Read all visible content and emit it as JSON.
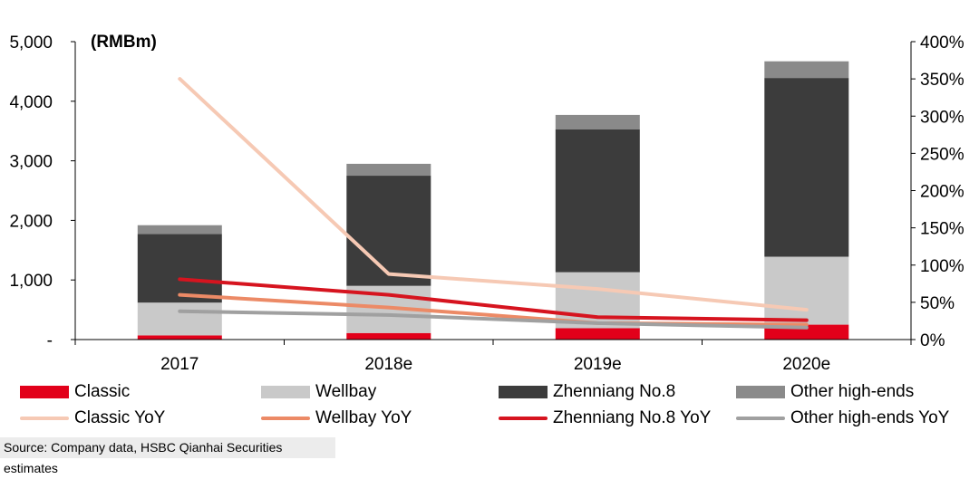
{
  "chart_data": {
    "type": "bar",
    "stacked": true,
    "unit_label": "(RMBm)",
    "categories": [
      "2017",
      "2018e",
      "2019e",
      "2020e"
    ],
    "series": [
      {
        "name": "Classic",
        "color": "#e2001a",
        "values": [
          70,
          110,
          190,
          250
        ]
      },
      {
        "name": "Wellbay",
        "color": "#c9c9c9",
        "values": [
          550,
          790,
          940,
          1140
        ]
      },
      {
        "name": "Zhenniang No.8",
        "color": "#3c3c3c",
        "values": [
          1150,
          1850,
          2400,
          3000
        ]
      },
      {
        "name": "Other high-ends",
        "color": "#8a8a8a",
        "values": [
          150,
          200,
          240,
          280
        ]
      }
    ],
    "line_series": [
      {
        "name": "Classic YoY",
        "color": "#f6c9b4",
        "values": [
          350,
          88,
          68,
          40
        ]
      },
      {
        "name": "Wellbay YoY",
        "color": "#ec8a66",
        "values": [
          60,
          43,
          22,
          20
        ]
      },
      {
        "name": "Zhenniang No.8 YoY",
        "color": "#d6141f",
        "values": [
          81,
          60,
          30,
          26
        ]
      },
      {
        "name": "Other high-ends YoY",
        "color": "#a0a0a0",
        "values": [
          38,
          33,
          22,
          16
        ]
      }
    ],
    "y_left": {
      "min": 0,
      "max": 5000,
      "ticks": [
        0,
        1000,
        2000,
        3000,
        4000,
        5000
      ],
      "tick_labels": [
        "-",
        "1,000",
        "2,000",
        "3,000",
        "4,000",
        "5,000"
      ]
    },
    "y_right": {
      "min": 0,
      "max": 400,
      "ticks": [
        0,
        50,
        100,
        150,
        200,
        250,
        300,
        350,
        400
      ],
      "tick_labels": [
        "0%",
        "50%",
        "100%",
        "150%",
        "200%",
        "250%",
        "300%",
        "350%",
        "400%"
      ]
    },
    "legend_position": "bottom"
  },
  "legend": {
    "bars": [
      "Classic",
      "Wellbay",
      "Zhenniang No.8",
      "Other high-ends"
    ],
    "lines": [
      "Classic YoY",
      "Wellbay YoY",
      "Zhenniang No.8 YoY",
      "Other high-ends YoY"
    ]
  },
  "source": "Source: Company data, HSBC Qianhai Securities estimates"
}
